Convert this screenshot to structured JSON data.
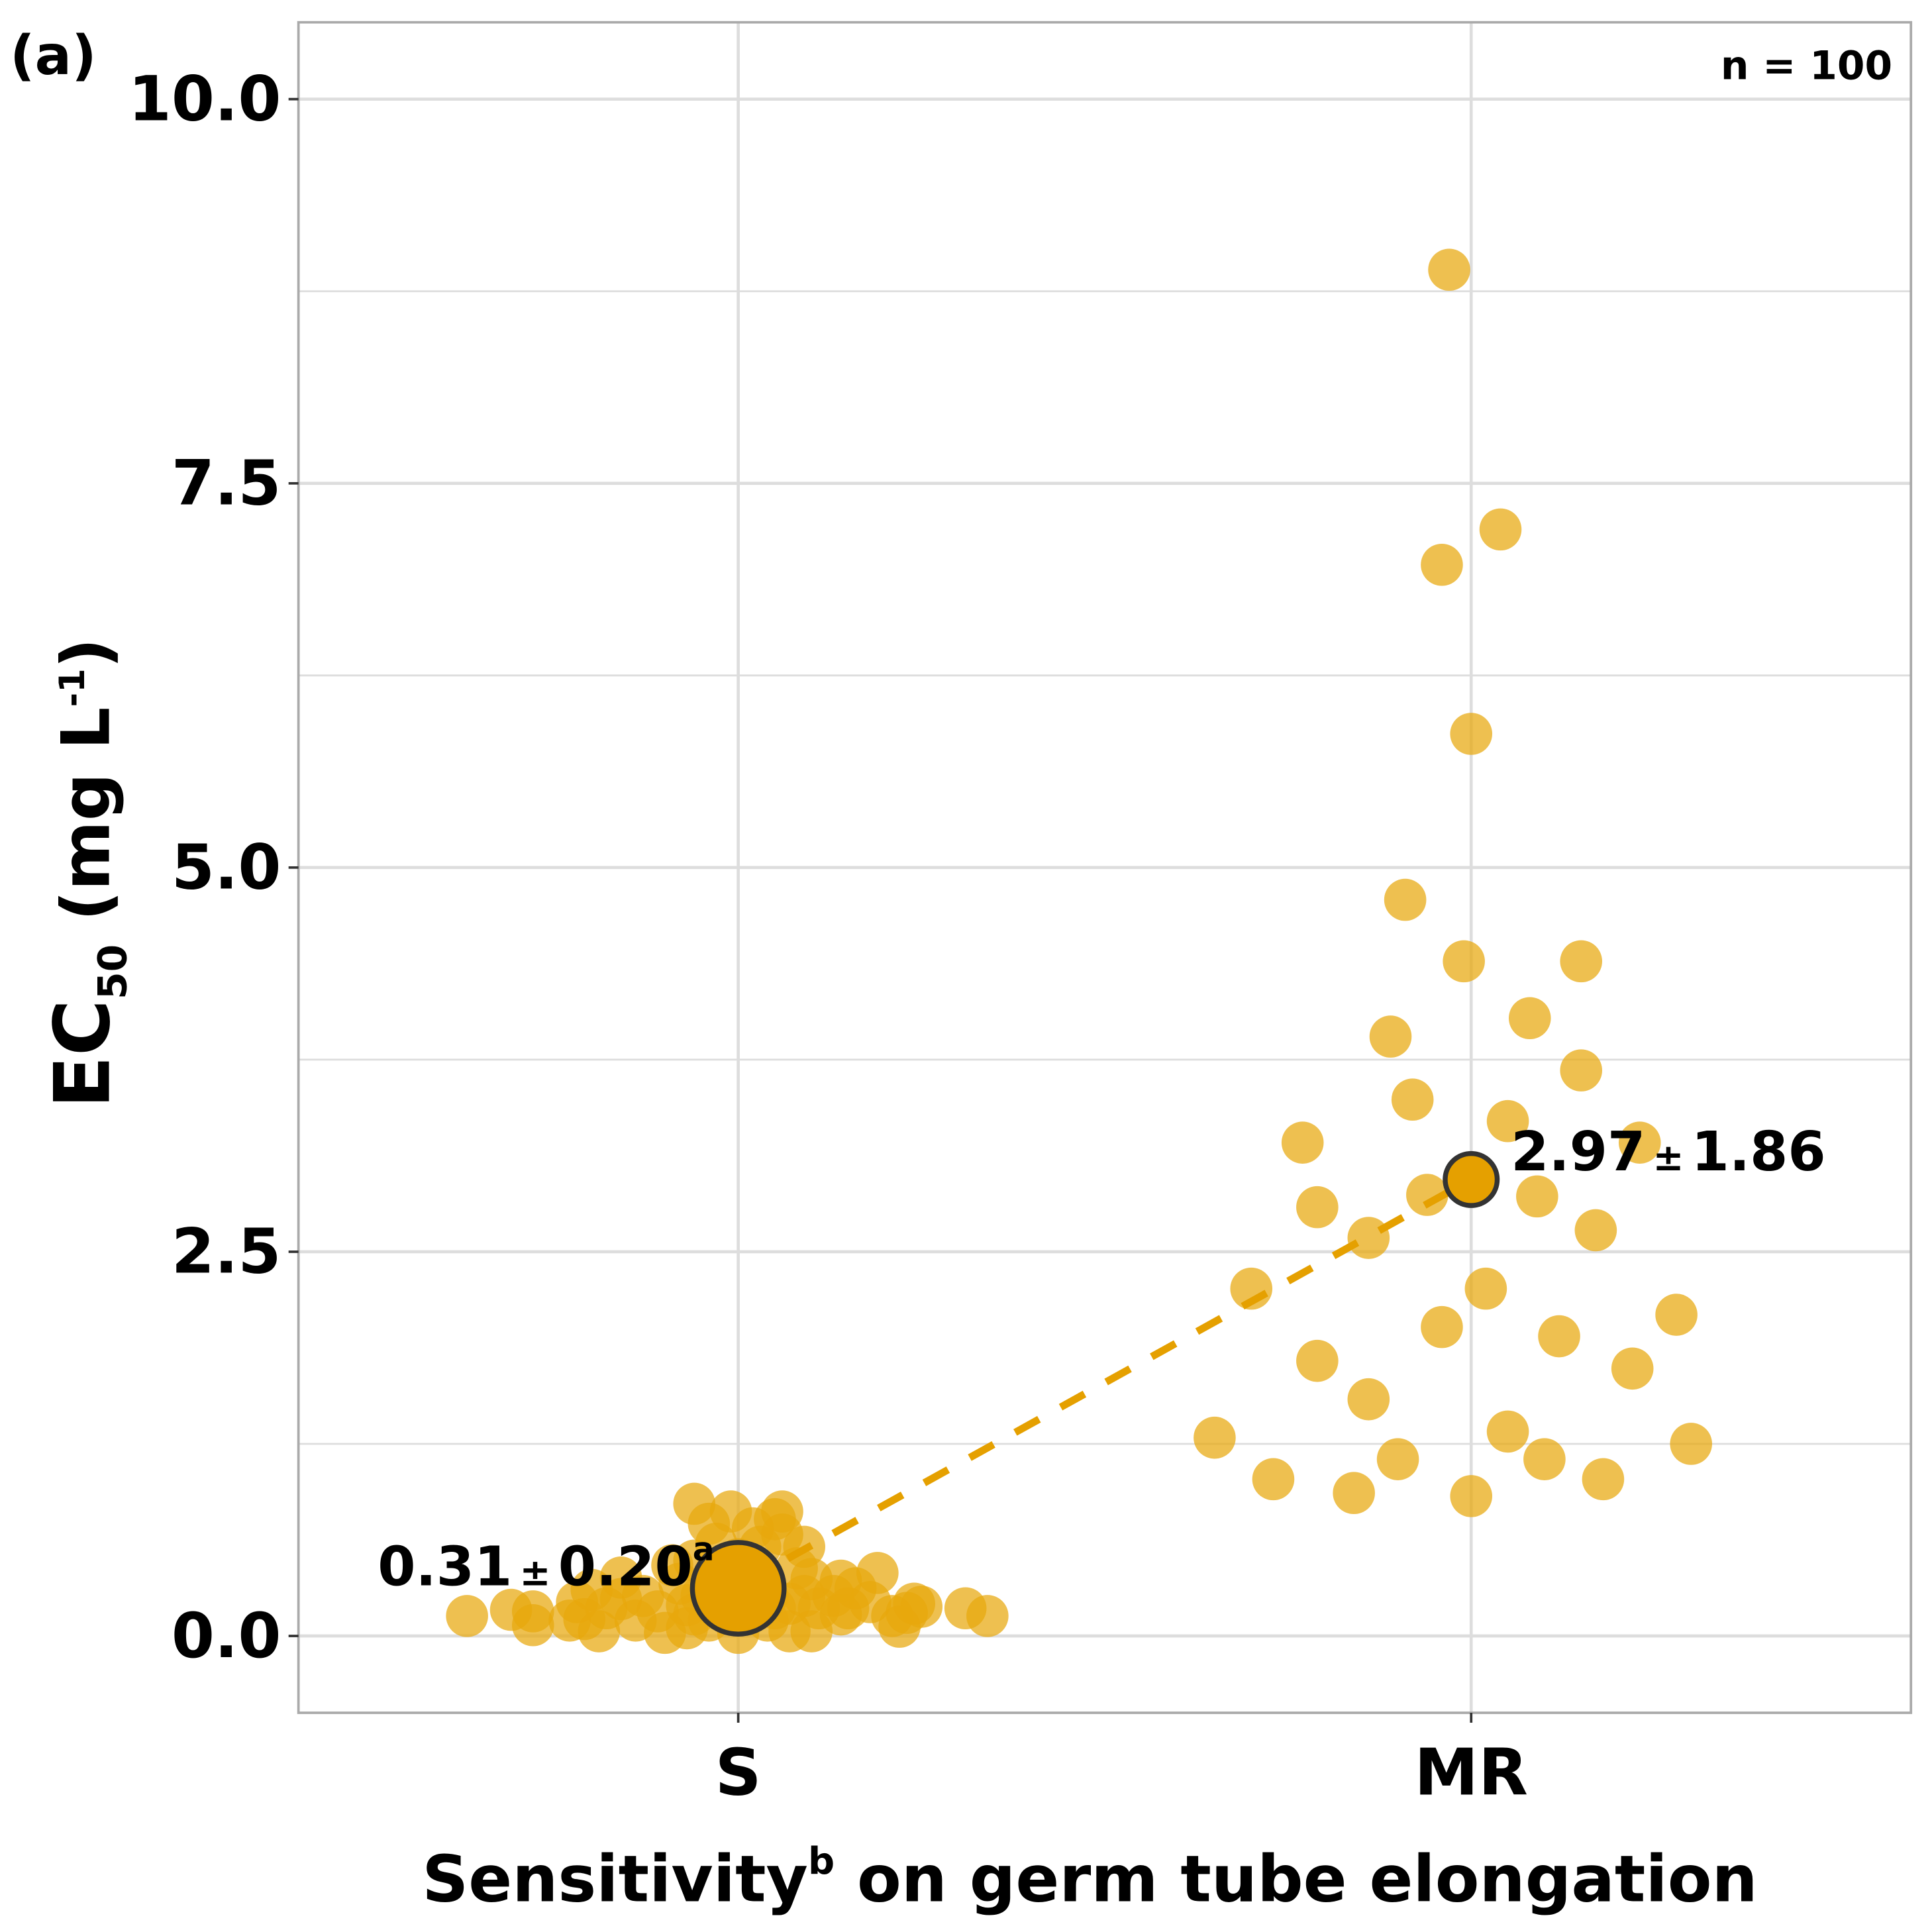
{
  "panel_label": "(a)",
  "n_label": "n = 100",
  "colors": {
    "point": "#E8A80C",
    "mean": "#E5A000",
    "mean_stroke": "#333333",
    "grid": "#DDDDDD",
    "frame": "#AAAAAA"
  },
  "chart_data": {
    "type": "scatter",
    "title": "",
    "xlabel_main": "Sensitivity",
    "xlabel_sup": "b",
    "xlabel_rest": " on germ tube elongation",
    "ylabel_main": "EC",
    "ylabel_sub": "50",
    "ylabel_rest": " (mg L",
    "ylabel_sup": "-1",
    "ylabel_close": ")",
    "categories": [
      "S",
      "MR"
    ],
    "xlim": [
      0.4,
      2.6
    ],
    "ylim": [
      -0.5,
      10.5
    ],
    "yticks": [
      "0.0",
      "2.5",
      "5.0",
      "7.5",
      "10.0"
    ],
    "ytick_values": [
      0,
      2.5,
      5,
      7.5,
      10
    ],
    "minor_grid": [
      1.25,
      3.75,
      6.25,
      8.75
    ],
    "grid": true,
    "series": [
      {
        "name": "S",
        "points": [
          [
            0.63,
            0.13
          ],
          [
            0.69,
            0.17
          ],
          [
            0.72,
            0.16
          ],
          [
            0.72,
            0.07
          ],
          [
            0.79,
            0.11
          ],
          [
            0.8,
            0.3
          ],
          [
            0.81,
            0.03
          ],
          [
            0.82,
            0.18
          ],
          [
            0.84,
            0.24
          ],
          [
            0.86,
            0.1
          ],
          [
            0.87,
            0.26
          ],
          [
            0.89,
            0.16
          ],
          [
            0.9,
            0.02
          ],
          [
            0.92,
            0.34
          ],
          [
            0.93,
            0.05
          ],
          [
            0.93,
            0.2
          ],
          [
            0.94,
            0.49
          ],
          [
            0.94,
            0.86
          ],
          [
            0.95,
            0.26
          ],
          [
            0.96,
            0.73
          ],
          [
            0.97,
            0.6
          ],
          [
            0.98,
            0.18
          ],
          [
            0.99,
            0.81
          ],
          [
            1.0,
            0.02
          ],
          [
            1.0,
            0.5
          ],
          [
            1.01,
            0.18
          ],
          [
            1.02,
            0.7
          ],
          [
            1.03,
            0.58
          ],
          [
            1.04,
            0.26
          ],
          [
            1.04,
            0.1
          ],
          [
            1.05,
            0.76
          ],
          [
            1.06,
            0.66
          ],
          [
            1.06,
            0.81
          ],
          [
            1.07,
            0.03
          ],
          [
            1.07,
            0.21
          ],
          [
            1.08,
            0.44
          ],
          [
            1.09,
            0.26
          ],
          [
            1.1,
            0.37
          ],
          [
            1.1,
            0.03
          ],
          [
            1.11,
            0.18
          ],
          [
            1.13,
            0.26
          ],
          [
            1.14,
            0.14
          ],
          [
            1.14,
            0.36
          ],
          [
            1.15,
            0.18
          ],
          [
            1.16,
            0.31
          ],
          [
            1.19,
            0.41
          ],
          [
            1.21,
            0.13
          ],
          [
            1.22,
            0.06
          ],
          [
            1.23,
            0.15
          ],
          [
            1.24,
            0.21
          ],
          [
            1.25,
            0.19
          ],
          [
            1.31,
            0.18
          ],
          [
            1.34,
            0.13
          ],
          [
            0.84,
            0.38
          ],
          [
            1.02,
            0.38
          ],
          [
            0.94,
            0.14
          ],
          [
            0.91,
            0.46
          ],
          [
            1.09,
            0.58
          ],
          [
            0.99,
            0.26
          ],
          [
            1.05,
            0.18
          ],
          [
            0.78,
            0.22
          ],
          [
            1.18,
            0.22
          ],
          [
            0.77,
            0.1
          ],
          [
            0.96,
            0.1
          ]
        ]
      },
      {
        "name": "MR",
        "points": [
          [
            1.97,
            8.89
          ],
          [
            2.04,
            7.2
          ],
          [
            1.96,
            6.97
          ],
          [
            2.0,
            5.87
          ],
          [
            1.91,
            4.79
          ],
          [
            1.99,
            4.39
          ],
          [
            2.15,
            4.39
          ],
          [
            2.08,
            4.02
          ],
          [
            1.89,
            3.9
          ],
          [
            2.15,
            3.68
          ],
          [
            1.92,
            3.49
          ],
          [
            1.77,
            3.21
          ],
          [
            2.05,
            3.35
          ],
          [
            2.23,
            3.21
          ],
          [
            1.94,
            2.87
          ],
          [
            2.09,
            2.86
          ],
          [
            1.79,
            2.79
          ],
          [
            2.17,
            2.64
          ],
          [
            1.86,
            2.59
          ],
          [
            1.7,
            2.26
          ],
          [
            2.02,
            2.26
          ],
          [
            2.28,
            2.09
          ],
          [
            1.96,
            2.01
          ],
          [
            2.12,
            1.95
          ],
          [
            1.79,
            1.79
          ],
          [
            2.22,
            1.74
          ],
          [
            1.86,
            1.54
          ],
          [
            1.65,
            1.29
          ],
          [
            2.05,
            1.33
          ],
          [
            2.3,
            1.25
          ],
          [
            1.9,
            1.15
          ],
          [
            2.1,
            1.15
          ],
          [
            1.73,
            1.02
          ],
          [
            2.18,
            1.02
          ],
          [
            1.84,
            0.93
          ],
          [
            2.0,
            0.91
          ]
        ]
      }
    ],
    "means": [
      {
        "category": "S",
        "x": 1,
        "y": 0.31,
        "label_value": "0.31",
        "label_pm": "±",
        "label_sd": "0.20",
        "label_sup": "a"
      },
      {
        "category": "MR",
        "x": 2,
        "y": 2.97,
        "label_value": "2.97",
        "label_pm": "±",
        "label_sd": "1.86",
        "label_sup": ""
      }
    ]
  }
}
